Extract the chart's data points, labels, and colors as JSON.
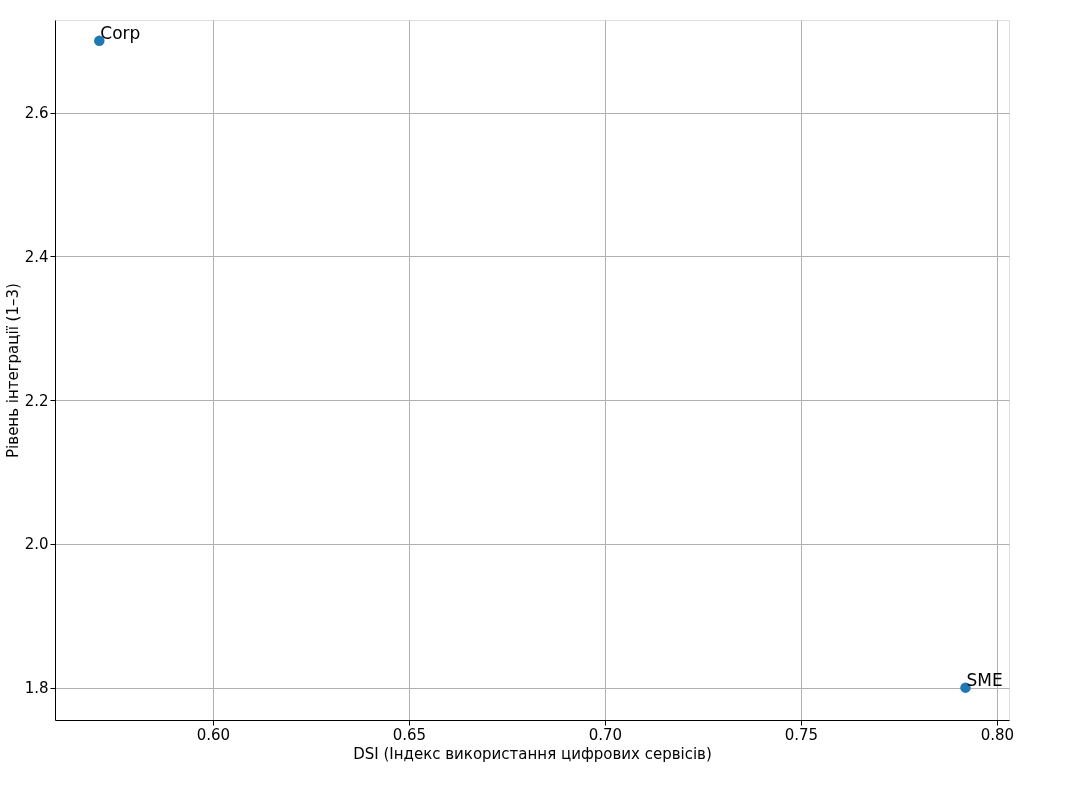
{
  "chart_data": {
    "type": "scatter",
    "xlabel": "DSI (Індекс використання цифрових сервісів)",
    "ylabel": "Рівень інтеграції (1–3)",
    "x": [
      0.571,
      0.792
    ],
    "series": [
      {
        "color": "#1f77b4",
        "values": [
          2.7,
          1.8
        ]
      }
    ],
    "annotations": [
      {
        "text": "Corp",
        "x": 0.571,
        "y": 2.7
      },
      {
        "text": "SME",
        "x": 0.792,
        "y": 1.8
      }
    ],
    "xlim": [
      0.5597,
      0.8031
    ],
    "ylim": [
      1.755,
      2.729
    ],
    "xticks": [
      {
        "value": 0.6,
        "label": "0.60"
      },
      {
        "value": 0.65,
        "label": "0.65"
      },
      {
        "value": 0.7,
        "label": "0.70"
      },
      {
        "value": 0.75,
        "label": "0.75"
      },
      {
        "value": 0.8,
        "label": "0.80"
      }
    ],
    "yticks": [
      {
        "value": 1.8,
        "label": "1.8"
      },
      {
        "value": 2.0,
        "label": "2.0"
      },
      {
        "value": 2.2,
        "label": "2.2"
      },
      {
        "value": 2.4,
        "label": "2.4"
      },
      {
        "value": 2.6,
        "label": "2.6"
      }
    ],
    "grid": true,
    "marker": "circle"
  }
}
